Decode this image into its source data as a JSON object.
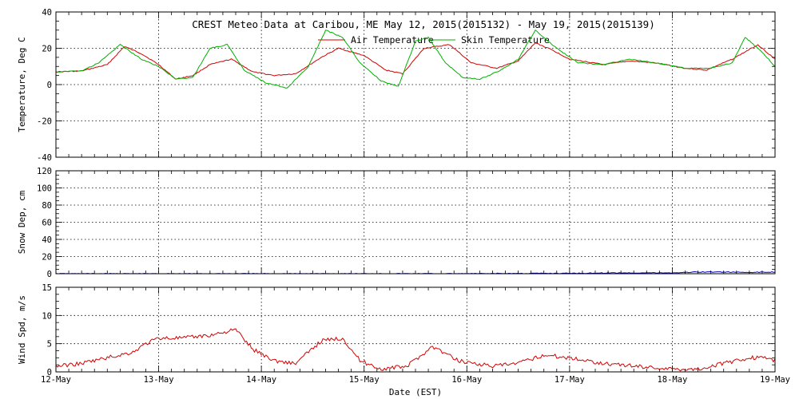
{
  "chart_data": {
    "type": "line",
    "title": "CREST Meteo Data at Caribou, ME   May 12, 2015(2015132) - May 19, 2015(2015139)",
    "xlabel": "Date (EST)",
    "x_tick_labels": [
      "12-May",
      "13-May",
      "14-May",
      "15-May",
      "16-May",
      "17-May",
      "18-May",
      "19-May"
    ],
    "xlim": [
      "2015-05-12T00:00",
      "2015-05-19T00:00"
    ],
    "panels": [
      {
        "ylabel": "Temperature, Deg C",
        "ylim": [
          -40,
          40
        ],
        "y_ticks": [
          -40,
          -20,
          0,
          20,
          40
        ],
        "grid": true,
        "legend_position": "top-center",
        "series": [
          {
            "name": "Air Temperature",
            "color": "#d40000",
            "x": [
              "2015-05-12T00:00",
              "2015-05-12T06:00",
              "2015-05-12T12:00",
              "2015-05-12T16:00",
              "2015-05-12T20:00",
              "2015-05-13T00:00",
              "2015-05-13T04:00",
              "2015-05-13T08:00",
              "2015-05-13T12:00",
              "2015-05-13T17:00",
              "2015-05-13T22:00",
              "2015-05-14T03:00",
              "2015-05-14T08:00",
              "2015-05-14T14:00",
              "2015-05-14T18:00",
              "2015-05-15T00:00",
              "2015-05-15T05:00",
              "2015-05-15T09:00",
              "2015-05-15T14:00",
              "2015-05-15T20:00",
              "2015-05-16T01:00",
              "2015-05-16T07:00",
              "2015-05-16T12:00",
              "2015-05-16T16:00",
              "2015-05-16T20:00",
              "2015-05-17T00:00",
              "2015-05-17T08:00",
              "2015-05-17T14:00",
              "2015-05-17T20:00",
              "2015-05-18T03:00",
              "2015-05-18T08:00",
              "2015-05-18T14:00",
              "2015-05-18T20:00",
              "2015-05-19T00:00"
            ],
            "values": [
              7,
              7.5,
              11,
              21,
              17,
              11,
              3,
              5,
              11,
              14,
              7,
              5,
              6,
              15,
              20,
              16,
              8,
              6,
              20,
              22,
              12,
              9,
              13,
              23,
              19,
              14,
              11,
              13,
              12,
              9,
              8,
              14,
              22,
              14
            ]
          },
          {
            "name": "Skin Temperature",
            "color": "#00b000",
            "x": [
              "2015-05-12T00:00",
              "2015-05-12T06:00",
              "2015-05-12T10:00",
              "2015-05-12T15:00",
              "2015-05-12T20:00",
              "2015-05-13T00:00",
              "2015-05-13T04:00",
              "2015-05-13T08:00",
              "2015-05-13T12:00",
              "2015-05-13T16:00",
              "2015-05-13T20:00",
              "2015-05-14T01:00",
              "2015-05-14T06:00",
              "2015-05-14T11:00",
              "2015-05-14T15:00",
              "2015-05-14T19:00",
              "2015-05-14T23:00",
              "2015-05-15T04:00",
              "2015-05-15T08:00",
              "2015-05-15T12:00",
              "2015-05-15T15:00",
              "2015-05-15T19:00",
              "2015-05-15T23:00",
              "2015-05-16T03:00",
              "2015-05-16T08:00",
              "2015-05-16T12:00",
              "2015-05-16T16:00",
              "2015-05-16T21:00",
              "2015-05-17T02:00",
              "2015-05-17T08:00",
              "2015-05-17T14:00",
              "2015-05-17T20:00",
              "2015-05-18T03:00",
              "2015-05-18T09:00",
              "2015-05-18T14:00",
              "2015-05-18T17:00",
              "2015-05-18T21:00",
              "2015-05-19T00:00"
            ],
            "values": [
              7,
              7.5,
              12,
              22,
              14,
              10,
              3,
              4,
              20,
              22,
              8,
              1,
              -2,
              10,
              30,
              26,
              12,
              2,
              -1,
              24,
              26,
              12,
              4,
              3,
              8,
              14,
              30,
              20,
              12,
              11,
              14,
              12,
              9,
              9,
              12,
              26,
              18,
              10
            ]
          }
        ]
      },
      {
        "ylabel": "Snow Dep, cm",
        "ylim": [
          0,
          120
        ],
        "y_ticks": [
          0,
          20,
          40,
          60,
          80,
          100,
          120
        ],
        "grid": true,
        "series": [
          {
            "name": "",
            "color": "#0000c0",
            "x": [
              "2015-05-12T00:00",
              "2015-05-13T00:00",
              "2015-05-14T00:00",
              "2015-05-15T00:00",
              "2015-05-15T12:00",
              "2015-05-16T00:00",
              "2015-05-16T12:00",
              "2015-05-17T00:00",
              "2015-05-17T12:00",
              "2015-05-18T00:00",
              "2015-05-18T06:00",
              "2015-05-18T12:00",
              "2015-05-18T18:00",
              "2015-05-19T00:00"
            ],
            "values": [
              0,
              0,
              0,
              0,
              0,
              0,
              0.3,
              0.5,
              1,
              1,
              2,
              2,
              1.5,
              2
            ]
          }
        ]
      },
      {
        "ylabel": "Wind Spd, m/s",
        "ylim": [
          0,
          15
        ],
        "y_ticks": [
          0,
          5,
          10,
          15
        ],
        "grid": true,
        "series": [
          {
            "name": "",
            "color": "#d40000",
            "x": [
              "2015-05-12T00:00",
              "2015-05-12T06:00",
              "2015-05-12T12:00",
              "2015-05-12T18:00",
              "2015-05-12T21:00",
              "2015-05-13T00:00",
              "2015-05-13T06:00",
              "2015-05-13T12:00",
              "2015-05-13T18:00",
              "2015-05-13T22:00",
              "2015-05-14T03:00",
              "2015-05-14T08:00",
              "2015-05-14T14:00",
              "2015-05-14T19:00",
              "2015-05-14T23:00",
              "2015-05-15T04:00",
              "2015-05-15T10:00",
              "2015-05-15T16:00",
              "2015-05-15T22:00",
              "2015-05-16T06:00",
              "2015-05-16T12:00",
              "2015-05-16T18:00",
              "2015-05-17T00:00",
              "2015-05-17T08:00",
              "2015-05-17T16:00",
              "2015-05-18T00:00",
              "2015-05-18T06:00",
              "2015-05-18T12:00",
              "2015-05-18T18:00",
              "2015-05-18T22:00",
              "2015-05-19T00:00"
            ],
            "values": [
              1,
              1.5,
              2.5,
              3.5,
              5,
              6,
              6,
              6.5,
              7.5,
              4,
              2,
              1.5,
              5.5,
              6,
              2,
              0.5,
              1,
              4.5,
              2,
              1,
              1.5,
              3,
              2.5,
              1.5,
              1,
              0.5,
              0.5,
              1.5,
              2.5,
              2.5,
              2
            ]
          }
        ]
      }
    ]
  }
}
